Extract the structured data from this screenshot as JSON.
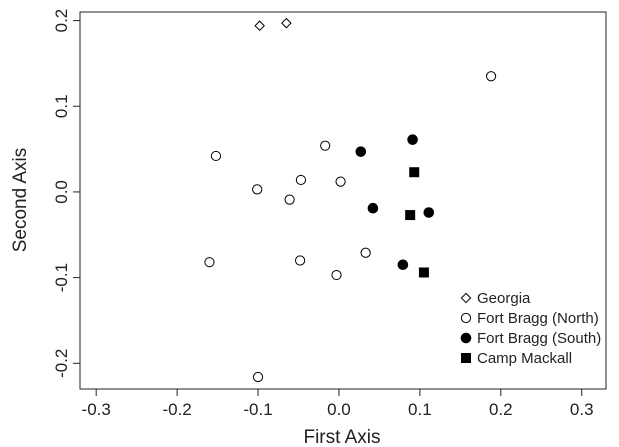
{
  "chart_data": {
    "type": "scatter",
    "xlabel": "First Axis",
    "ylabel": "Second Axis",
    "xlim": [
      -0.32,
      0.33
    ],
    "ylim": [
      -0.23,
      0.21
    ],
    "xticks": [
      -0.3,
      -0.2,
      -0.1,
      0.0,
      0.1,
      0.2,
      0.3
    ],
    "xtick_labels": [
      "-0.3",
      "-0.2",
      "-0.1",
      "0.0",
      "0.1",
      "0.2",
      "0.3"
    ],
    "yticks": [
      -0.2,
      -0.1,
      0.0,
      0.1,
      0.2
    ],
    "ytick_labels": [
      "-0.2",
      "-0.1",
      "0.0",
      "0.1",
      "0.2"
    ],
    "grid": false,
    "legend_position": "bottom-right",
    "series": [
      {
        "name": "Georgia",
        "marker": "open-diamond",
        "color": "#000000",
        "points": [
          [
            -0.098,
            0.194
          ],
          [
            -0.065,
            0.197
          ]
        ]
      },
      {
        "name": "Fort Bragg (North)",
        "marker": "open-circle",
        "color": "#000000",
        "points": [
          [
            0.188,
            0.135
          ],
          [
            -0.152,
            0.042
          ],
          [
            -0.017,
            0.054
          ],
          [
            -0.047,
            0.014
          ],
          [
            -0.101,
            0.003
          ],
          [
            0.002,
            0.012
          ],
          [
            -0.061,
            -0.009
          ],
          [
            -0.16,
            -0.082
          ],
          [
            -0.048,
            -0.08
          ],
          [
            0.033,
            -0.071
          ],
          [
            -0.003,
            -0.097
          ],
          [
            -0.1,
            -0.216
          ]
        ]
      },
      {
        "name": "Fort Bragg (South)",
        "marker": "filled-circle",
        "color": "#000000",
        "points": [
          [
            0.091,
            0.061
          ],
          [
            0.027,
            0.047
          ],
          [
            0.042,
            -0.019
          ],
          [
            0.111,
            -0.024
          ],
          [
            0.079,
            -0.085
          ]
        ]
      },
      {
        "name": "Camp Mackall",
        "marker": "filled-square",
        "color": "#000000",
        "points": [
          [
            0.093,
            0.023
          ],
          [
            0.088,
            -0.027
          ],
          [
            0.105,
            -0.094
          ]
        ]
      }
    ]
  }
}
